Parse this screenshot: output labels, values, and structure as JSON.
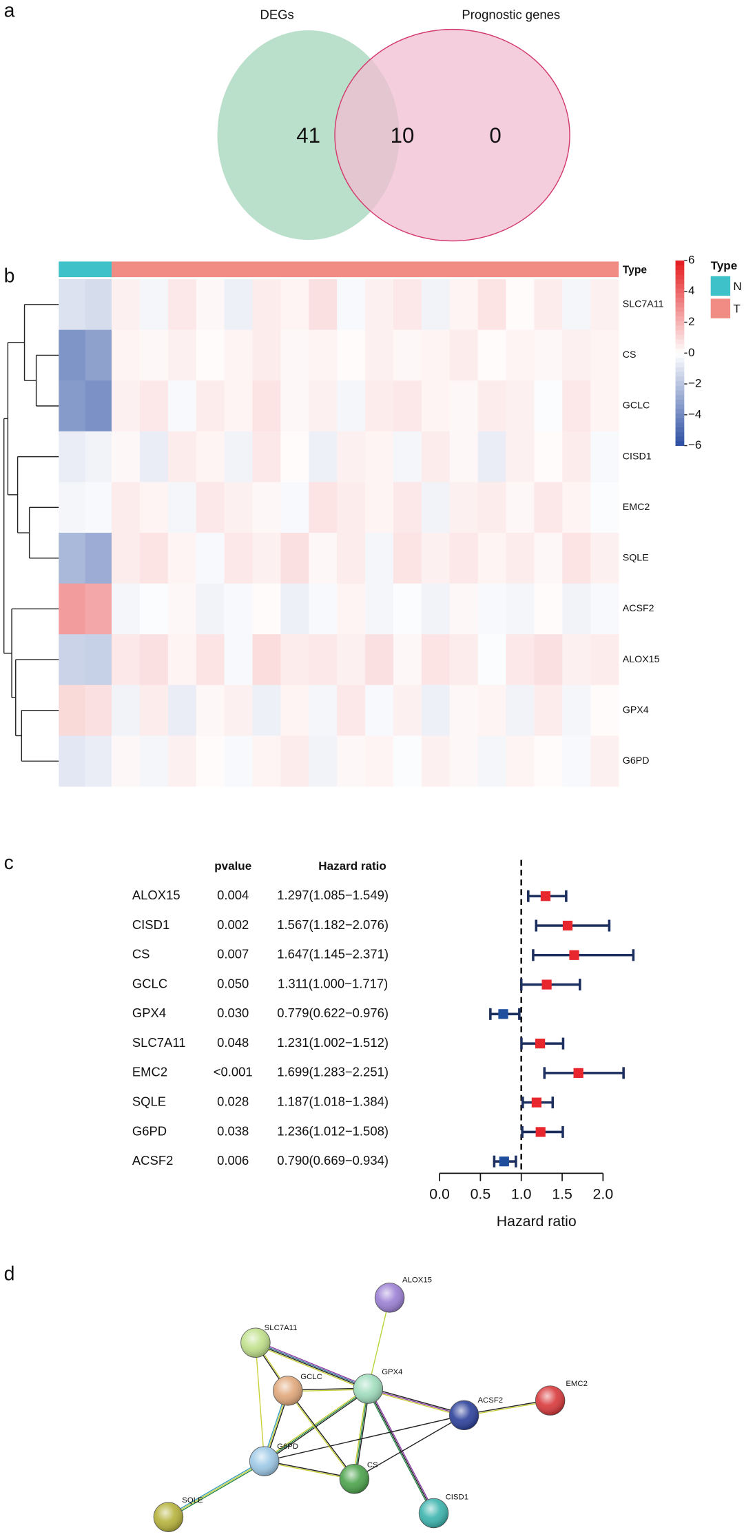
{
  "chart_data": [
    {
      "type": "venn",
      "panel": "a",
      "sets": [
        {
          "name": "DEGs",
          "color": "#b3dcc4"
        },
        {
          "name": "Prognostic genes",
          "color": "#f1bdd1",
          "stroke": "#d2386c"
        }
      ],
      "values": [
        41,
        10,
        0
      ]
    },
    {
      "type": "heatmap",
      "panel": "b",
      "rows": [
        "SLC7A11",
        "CS",
        "GCLC",
        "CISD1",
        "EMC2",
        "SQLE",
        "ACSF2",
        "ALOX15",
        "GPX4",
        "G6PD"
      ],
      "legend_title": "Type",
      "groups": [
        {
          "name": "N",
          "color": "#3fc1c9",
          "values": [
            [
              -1.0,
              -1.2
            ],
            [
              -3.6,
              -3.2
            ],
            [
              -3.4,
              -3.7
            ],
            [
              -0.6,
              -0.4
            ],
            [
              -0.3,
              -0.2
            ],
            [
              -2.4,
              -2.8
            ],
            [
              2.6,
              2.3
            ],
            [
              -1.5,
              -1.6
            ],
            [
              1.0,
              0.8
            ],
            [
              -0.8,
              -0.6
            ]
          ]
        },
        {
          "name": "T",
          "color": "#f08c84",
          "values": [
            [
              0.4,
              -0.3,
              0.6,
              0.2,
              -0.5,
              0.5,
              0.3,
              0.8,
              -0.2,
              0.4,
              0.6,
              -0.4,
              0.3,
              0.7,
              0.1,
              0.5,
              -0.3,
              0.4
            ],
            [
              0.3,
              0.2,
              0.4,
              0.1,
              0.3,
              0.5,
              0.2,
              0.3,
              0.1,
              0.4,
              0.2,
              0.3,
              0.5,
              0.1,
              0.3,
              0.2,
              0.4,
              0.3
            ],
            [
              0.4,
              0.6,
              -0.2,
              0.5,
              0.3,
              0.7,
              0.2,
              0.4,
              -0.3,
              0.5,
              0.6,
              0.3,
              0.2,
              0.5,
              0.4,
              -0.1,
              0.6,
              0.3
            ],
            [
              0.2,
              -0.6,
              0.5,
              0.3,
              -0.4,
              0.6,
              0.1,
              -0.5,
              0.4,
              0.3,
              -0.3,
              0.5,
              0.2,
              -0.6,
              0.4,
              0.1,
              0.5,
              -0.2
            ],
            [
              0.5,
              0.3,
              -0.3,
              0.6,
              0.4,
              0.2,
              -0.2,
              0.7,
              0.5,
              0.3,
              0.6,
              -0.4,
              0.4,
              0.5,
              0.2,
              0.6,
              0.3,
              -0.1
            ],
            [
              0.5,
              0.7,
              0.3,
              -0.2,
              0.6,
              0.4,
              0.8,
              0.2,
              0.5,
              -0.3,
              0.7,
              0.4,
              0.6,
              0.3,
              0.5,
              0.2,
              0.7,
              0.4
            ],
            [
              -0.3,
              -0.1,
              0.2,
              -0.4,
              -0.2,
              0.1,
              -0.5,
              -0.2,
              0.3,
              -0.3,
              -0.1,
              -0.4,
              0.2,
              -0.2,
              -0.3,
              0.1,
              -0.4,
              -0.2
            ],
            [
              0.6,
              0.8,
              0.3,
              0.7,
              -0.2,
              0.9,
              0.5,
              0.6,
              0.4,
              0.8,
              0.2,
              0.7,
              0.5,
              -0.1,
              0.6,
              0.8,
              0.4,
              0.5
            ],
            [
              -0.4,
              0.5,
              -0.6,
              0.2,
              0.4,
              -0.5,
              0.3,
              -0.3,
              0.6,
              -0.2,
              0.4,
              -0.5,
              0.2,
              0.3,
              -0.4,
              0.5,
              -0.3,
              0.1
            ],
            [
              0.2,
              -0.3,
              0.4,
              0.1,
              -0.2,
              0.3,
              0.5,
              -0.4,
              0.2,
              0.3,
              -0.1,
              0.4,
              0.2,
              -0.3,
              0.3,
              0.1,
              -0.2,
              0.4
            ]
          ]
        }
      ],
      "clim": [
        -6,
        6
      ],
      "colors": [
        "#2b4ea2",
        "#ffffff",
        "#e31a1c"
      ],
      "cticks": [
        {
          "value": -6,
          "label": "−6"
        },
        {
          "value": -4,
          "label": "−4"
        },
        {
          "value": -2,
          "label": "−2"
        },
        0,
        2,
        4,
        6
      ]
    },
    {
      "type": "forest",
      "panel": "c",
      "columns": [
        "pvalue",
        "Hazard ratio"
      ],
      "genes": [
        "ALOX15",
        "CISD1",
        "CS",
        "GCLC",
        "GPX4",
        "SLC7A11",
        "EMC2",
        "SQLE",
        "G6PD",
        "ACSF2"
      ],
      "pvalues": [
        "0.004",
        "0.002",
        "0.007",
        "0.050",
        "0.030",
        "0.048",
        "<0.001",
        "0.028",
        "0.038",
        "0.006"
      ],
      "hr_labels": [
        "1.297(1.085−1.549)",
        "1.567(1.182−2.076)",
        "1.647(1.145−2.371)",
        "1.311(1.000−1.717)",
        "0.779(0.622−0.976)",
        "1.231(1.002−1.512)",
        "1.699(1.283−2.251)",
        "1.187(1.018−1.384)",
        "1.236(1.012−1.508)",
        "0.790(0.669−0.934)"
      ],
      "hr": [
        1.297,
        1.567,
        1.647,
        1.311,
        0.779,
        1.231,
        1.699,
        1.187,
        1.236,
        0.79
      ],
      "lower": [
        1.085,
        1.182,
        1.145,
        1.0,
        0.622,
        1.002,
        1.283,
        1.018,
        1.012,
        0.669
      ],
      "upper": [
        1.549,
        2.076,
        2.371,
        1.717,
        0.976,
        1.512,
        2.251,
        1.384,
        1.508,
        0.934
      ],
      "point_colors": [
        "#e8262d",
        "#e8262d",
        "#e8262d",
        "#e8262d",
        "#1f4e9c",
        "#e8262d",
        "#e8262d",
        "#e8262d",
        "#e8262d",
        "#1f4e9c"
      ],
      "whisker_color": "#1d2f5f",
      "ref_line": 1,
      "xlim": [
        0,
        2
      ],
      "xticks": [
        {
          "value": 0,
          "label": "0.0"
        },
        0.5,
        {
          "value": 1,
          "label": "1.0"
        },
        1.5,
        {
          "value": 2,
          "label": "2.0"
        }
      ],
      "xlabel": "Hazard ratio"
    },
    {
      "type": "network",
      "panel": "d",
      "nodes": [
        {
          "label": "ALOX15",
          "color": "#9b7fd4"
        },
        {
          "label": "SLC7A11",
          "color": "#bfe08a"
        },
        {
          "label": "GCLC",
          "color": "#e0a77a"
        },
        {
          "label": "GPX4",
          "color": "#9fdcbc"
        },
        {
          "label": "ACSF2",
          "color": "#2b3f9a"
        },
        {
          "label": "EMC2",
          "color": "#d8383a"
        },
        {
          "label": "G6PD",
          "color": "#9cc8e6"
        },
        {
          "label": "CS",
          "color": "#4aa24a"
        },
        {
          "label": "CISD1",
          "color": "#3bb3ad"
        },
        {
          "label": "SQLE",
          "color": "#b5b23a"
        }
      ]
    }
  ]
}
